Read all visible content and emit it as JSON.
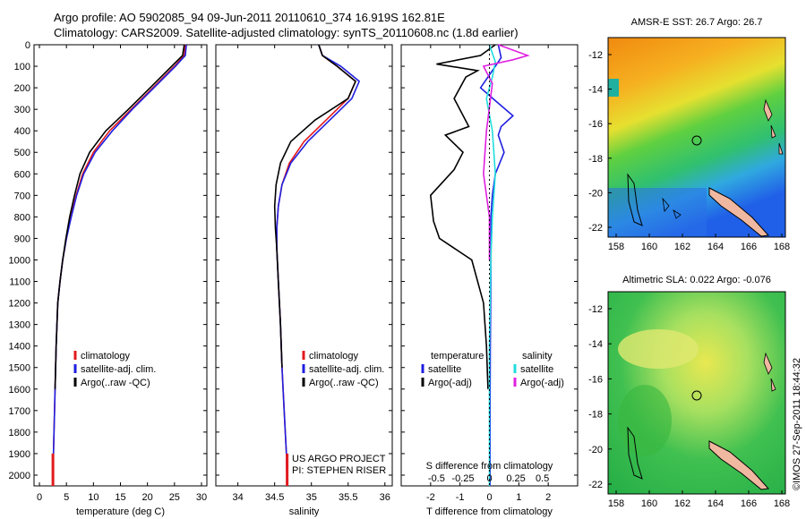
{
  "header": {
    "line1": "Argo profile: AO 5902085_94 09-Jun-2011 20110610_374 16.919S 162.81E",
    "line2": "Climatology: CARS2009. Satellite-adjusted climatology: synTS_20110608.nc (1.8d earlier)"
  },
  "colors": {
    "climatology": "#e31a1c",
    "satellite": "#1f1fe0",
    "argo": "#000000",
    "salinity_satellite": "#22dddd",
    "salinity_argo": "#e020e0",
    "land": "#f0b8a0"
  },
  "chart_data": [
    {
      "type": "line",
      "name": "temperature-profile",
      "xlabel": "temperature (deg C)",
      "xlim": [
        -1,
        31
      ],
      "xticks": [
        0,
        5,
        10,
        15,
        20,
        25,
        30
      ],
      "ylim": [
        0,
        2050
      ],
      "yticks": [
        0,
        100,
        200,
        300,
        400,
        500,
        600,
        700,
        800,
        900,
        1000,
        1100,
        1200,
        1300,
        1400,
        1500,
        1600,
        1700,
        1800,
        1900,
        2000
      ],
      "legend": [
        "climatology",
        "satellite-adj. clim.",
        "Argo(..raw -QC)"
      ],
      "series": [
        {
          "name": "climatology",
          "x": [
            27,
            26.8,
            25,
            21,
            17,
            13,
            10,
            8,
            6.8,
            5.8,
            5,
            4.3,
            3.8,
            3.4,
            3.1,
            2.9,
            2.6,
            2.5
          ],
          "y": [
            0,
            50,
            100,
            200,
            300,
            400,
            500,
            600,
            700,
            800,
            900,
            1000,
            1100,
            1200,
            1400,
            1600,
            1900,
            2050
          ]
        },
        {
          "name": "satellite-adj. clim.",
          "x": [
            27.2,
            27,
            25.2,
            21.2,
            17.2,
            13.5,
            10.3,
            8.2,
            6.9,
            5.9,
            5,
            4.3,
            3.8,
            3.4,
            3.1,
            2.9,
            2.6,
            2.5
          ],
          "y": [
            0,
            50,
            100,
            200,
            300,
            400,
            500,
            600,
            700,
            800,
            900,
            1000,
            1100,
            1200,
            1400,
            1600,
            1900,
            2050
          ]
        },
        {
          "name": "Argo(..raw -QC)",
          "x": [
            26.8,
            26.5,
            24.5,
            20.5,
            16.5,
            12.3,
            9.3,
            7.5,
            6.5,
            5.6,
            4.9,
            4.3,
            3.8,
            3.4,
            3.1,
            2.9
          ],
          "y": [
            0,
            50,
            100,
            200,
            300,
            400,
            500,
            600,
            700,
            800,
            900,
            1000,
            1100,
            1200,
            1400,
            1600
          ]
        }
      ]
    },
    {
      "type": "line",
      "name": "salinity-profile",
      "xlabel": "salinity",
      "xlim": [
        33.7,
        36.1
      ],
      "xticks": [
        34,
        34.5,
        35,
        35.5,
        36
      ],
      "ylim": [
        0,
        2050
      ],
      "legend": [
        "climatology",
        "satellite-adj. clim.",
        "Argo(..raw -QC)"
      ],
      "annotation": [
        "US ARGO PROJECT",
        "PI: STEPHEN RISER"
      ],
      "series": [
        {
          "name": "climatology",
          "x": [
            35.1,
            35.15,
            35.35,
            35.6,
            35.5,
            35.2,
            34.9,
            34.7,
            34.6,
            34.55,
            34.53,
            34.53,
            34.55,
            34.58,
            34.6,
            34.63,
            34.66,
            34.67
          ],
          "y": [
            0,
            50,
            100,
            170,
            250,
            350,
            450,
            550,
            650,
            750,
            850,
            950,
            1100,
            1300,
            1500,
            1700,
            1900,
            2050
          ]
        },
        {
          "name": "satellite-adj. clim.",
          "x": [
            35.1,
            35.15,
            35.4,
            35.65,
            35.55,
            35.25,
            34.95,
            34.72,
            34.6,
            34.55,
            34.53,
            34.53,
            34.55,
            34.58,
            34.6,
            34.63,
            34.66,
            34.67
          ],
          "y": [
            0,
            50,
            100,
            170,
            250,
            350,
            450,
            550,
            650,
            750,
            850,
            950,
            1100,
            1300,
            1500,
            1700,
            1900,
            2050
          ]
        },
        {
          "name": "Argo(..raw -QC)",
          "x": [
            35.1,
            35.15,
            35.35,
            35.6,
            35.5,
            35.05,
            34.72,
            34.58,
            34.52,
            34.5,
            34.51,
            34.53,
            34.55,
            34.58,
            34.6
          ],
          "y": [
            0,
            50,
            100,
            170,
            250,
            350,
            450,
            550,
            650,
            750,
            850,
            950,
            1100,
            1300,
            1500
          ]
        }
      ]
    },
    {
      "type": "line",
      "name": "difference-profile",
      "xlabel": "T difference from climatology",
      "xlim": [
        -3,
        3
      ],
      "xticks": [
        -2,
        -1,
        0,
        1,
        2
      ],
      "s_axis_label": "S difference from climatology",
      "s_ticks": [
        "-0.5",
        "-0.25",
        "0",
        "0.25",
        "0.5"
      ],
      "ylim": [
        0,
        2050
      ],
      "legend_left_title": "temperature",
      "legend_right_title": "salinity",
      "legend_left": [
        "satellite",
        "Argo(-adj)"
      ],
      "legend_right": [
        "satellite",
        "Argo(-adj)"
      ],
      "series": [
        {
          "name": "T satellite",
          "x": [
            0.3,
            0.4,
            0.1,
            -0.3,
            0.2,
            0.8,
            0.4,
            0.3,
            0.5,
            0.2,
            0.1,
            0.05,
            0.05,
            0.05,
            0.03,
            0.02,
            0.02
          ],
          "y": [
            0,
            60,
            120,
            200,
            260,
            330,
            380,
            420,
            500,
            600,
            700,
            800,
            900,
            1100,
            1400,
            1700,
            2050
          ]
        },
        {
          "name": "T Argo",
          "x": [
            0.2,
            -0.3,
            -1.8,
            -0.4,
            -0.8,
            -1.2,
            -0.7,
            -1.5,
            -0.9,
            -1.2,
            -2.0,
            -1.9,
            -1.7,
            -0.6,
            -0.2,
            -0.1,
            -0.05
          ],
          "y": [
            0,
            50,
            90,
            120,
            150,
            250,
            380,
            420,
            500,
            580,
            700,
            820,
            900,
            1000,
            1200,
            1400,
            1600
          ]
        },
        {
          "name": "S satellite",
          "x": [
            0.0,
            0.2,
            0.1,
            -0.1,
            0.1,
            0.2,
            0.1,
            0.05,
            0.0,
            0.0
          ],
          "y": [
            0,
            80,
            150,
            250,
            400,
            600,
            800,
            1000,
            1400,
            2050
          ]
        },
        {
          "name": "S Argo",
          "x": [
            0.3,
            1.3,
            0.8,
            -0.2,
            0.1,
            -0.1,
            -0.2,
            0.0,
            0.0
          ],
          "y": [
            0,
            50,
            70,
            100,
            180,
            400,
            600,
            800,
            1000
          ]
        }
      ]
    }
  ],
  "maps": [
    {
      "title": "AMSR-E SST: 26.7 Argo: 26.7",
      "xticks": [
        "158",
        "160",
        "162",
        "164",
        "166",
        "168"
      ],
      "yticks": [
        "-12",
        "-14",
        "-16",
        "-18",
        "-20",
        "-22"
      ]
    },
    {
      "title": "Altimetric SLA: 0.022 Argo: -0.076",
      "xticks": [
        "158",
        "160",
        "162",
        "164",
        "166",
        "168"
      ],
      "yticks": [
        "-12",
        "-14",
        "-16",
        "-18",
        "-20",
        "-22"
      ]
    }
  ],
  "footer": "©IMOS 27-Sep-2011 18:44:32"
}
